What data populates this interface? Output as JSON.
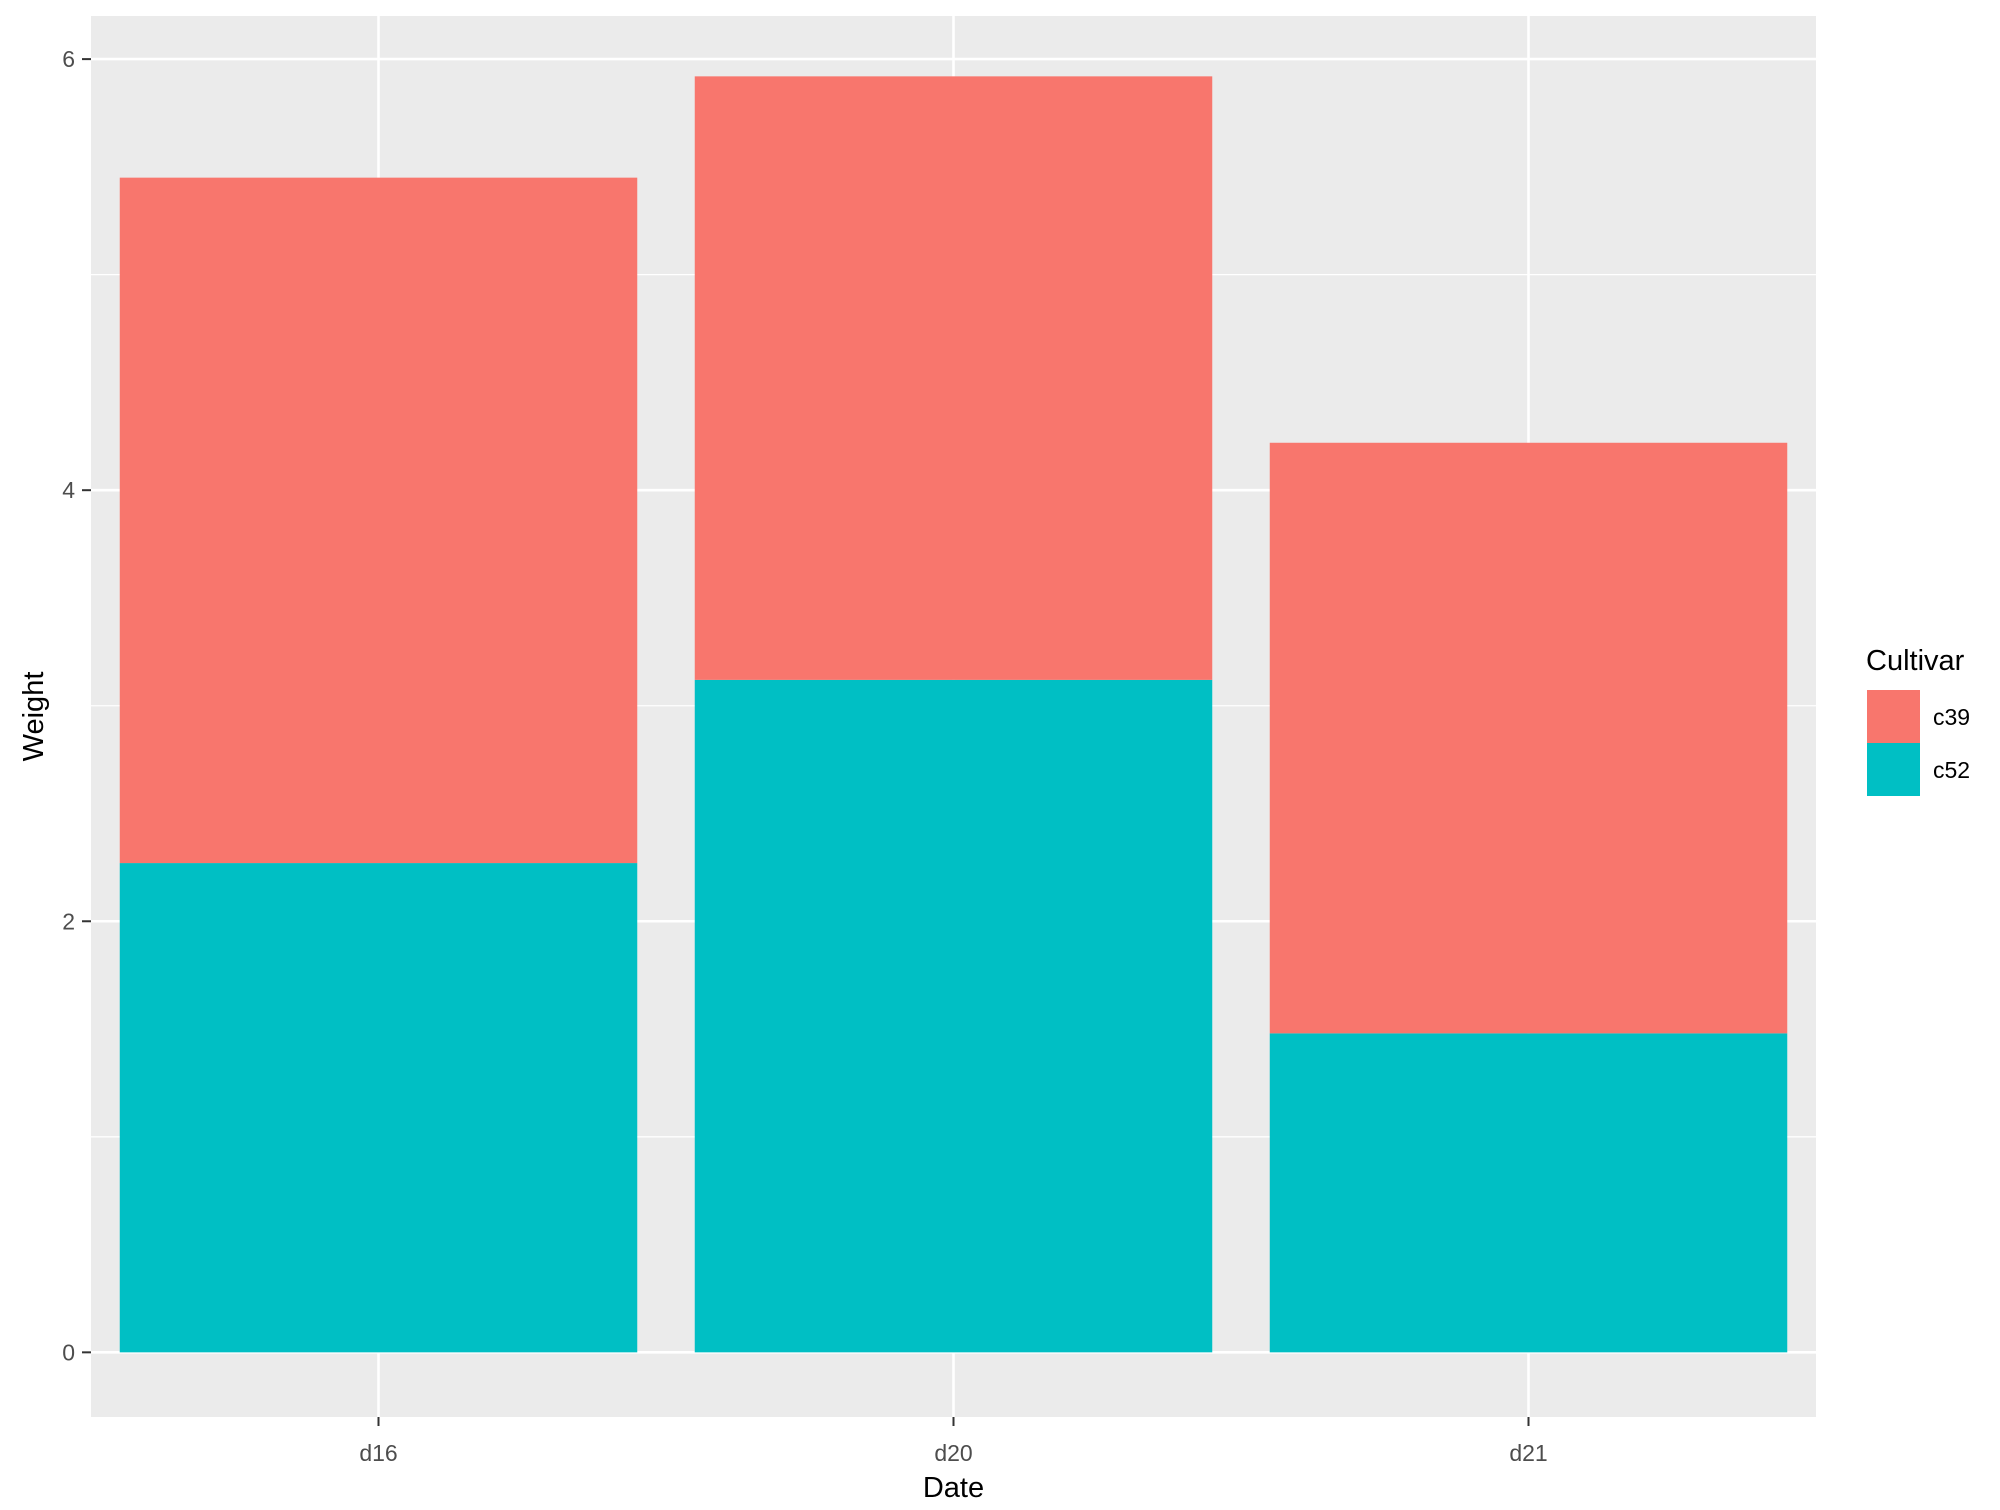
{
  "chart_data": {
    "type": "bar",
    "stacked": true,
    "xlabel": "Date",
    "ylabel": "Weight",
    "categories": [
      "d16",
      "d20",
      "d21"
    ],
    "series": [
      {
        "name": "c52",
        "color": "#00BFC4",
        "values": [
          2.27,
          3.12,
          1.48
        ]
      },
      {
        "name": "c39",
        "color": "#F8766D",
        "values": [
          3.18,
          2.8,
          2.74
        ]
      }
    ],
    "ylim": [
      -0.3,
      6.2
    ],
    "yticks": [
      0,
      2,
      4,
      6
    ],
    "grid": true,
    "legend": {
      "title": "Cultivar",
      "position": "right",
      "entries": [
        {
          "label": "c39",
          "color": "#F8766D"
        },
        {
          "label": "c52",
          "color": "#00BFC4"
        }
      ]
    },
    "panel_background": "#EBEBEB",
    "grid_color": "#FFFFFF"
  }
}
